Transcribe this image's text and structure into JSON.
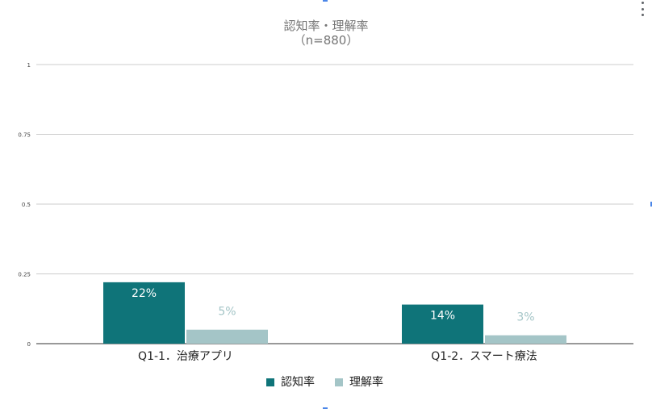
{
  "chart_data": {
    "type": "bar",
    "title": "認知率・理解率",
    "subtitle": "（n=880）",
    "categories": [
      "Q1-1．治療アプリ",
      "Q1-2．スマート療法"
    ],
    "series": [
      {
        "name": "認知率",
        "values": [
          0.22,
          0.14
        ],
        "labels": [
          "22%",
          "14%"
        ],
        "color": "#0f7479"
      },
      {
        "name": "理解率",
        "values": [
          0.05,
          0.03
        ],
        "labels": [
          "5%",
          "3%"
        ],
        "color": "#a4c5c7"
      }
    ],
    "ylim": [
      0,
      1
    ],
    "yticks": [
      0,
      0.25,
      0.5,
      0.75,
      1
    ],
    "ytick_labels": [
      "0",
      "0.25",
      "0.5",
      "0.75",
      "1"
    ],
    "xlabel": "",
    "ylabel": "",
    "grid": true,
    "legend": "bottom"
  }
}
